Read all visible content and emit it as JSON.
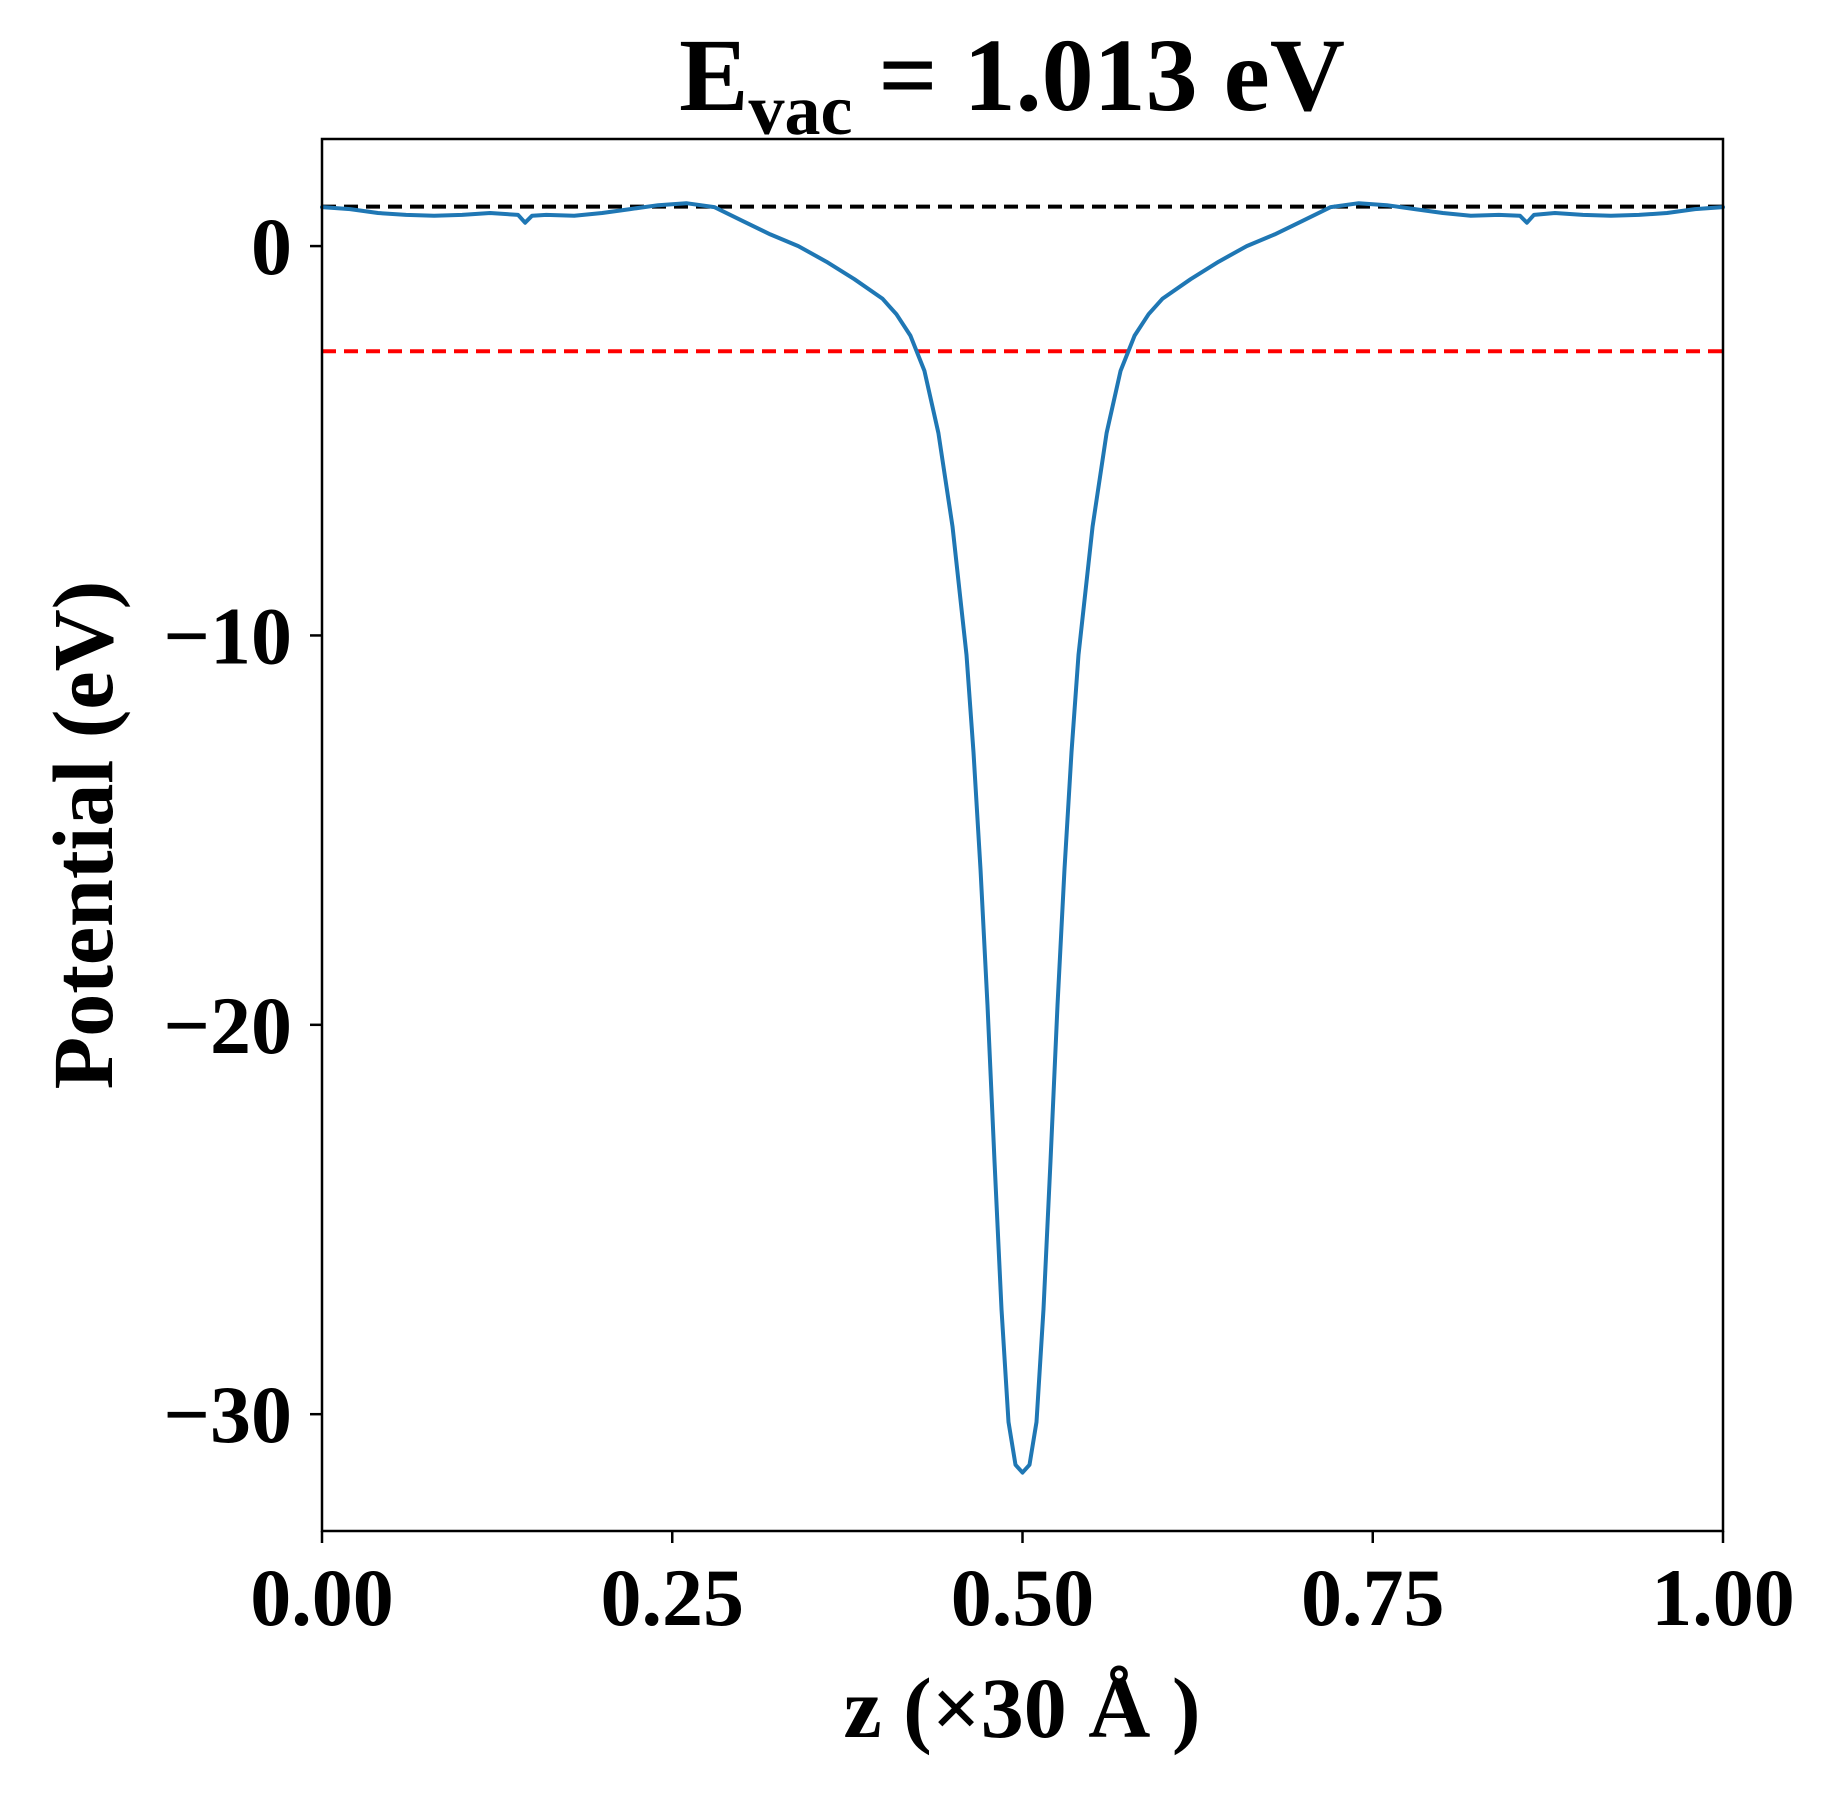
{
  "chart_data": {
    "type": "line",
    "title": {
      "main": "E",
      "subscript": "vac",
      "rest": " = 1.013 eV"
    },
    "xlabel": "z (×30 Å )",
    "ylabel": "Potential (eV)",
    "xlim": [
      0.0,
      1.0
    ],
    "ylim": [
      -33.0,
      2.75
    ],
    "x_ticks": [
      0.0,
      0.25,
      0.5,
      0.75,
      1.0
    ],
    "x_tick_labels": [
      "0.00",
      "0.25",
      "0.50",
      "0.75",
      "1.00"
    ],
    "y_ticks": [
      0,
      -10,
      -20,
      -30
    ],
    "y_tick_labels": [
      "0",
      "−10",
      "−20",
      "−30"
    ],
    "grid": false,
    "legend": null,
    "reference_lines": [
      {
        "label": "vacuum level",
        "y": 1.013,
        "color": "#000000",
        "style": "dashed"
      },
      {
        "label": "reference level",
        "y": -2.7,
        "color": "#ff0000",
        "style": "dashed"
      }
    ],
    "series": [
      {
        "color": "#1f77b4",
        "x": [
          0.0,
          0.02,
          0.04,
          0.06,
          0.08,
          0.1,
          0.12,
          0.14,
          0.145,
          0.15,
          0.16,
          0.18,
          0.2,
          0.22,
          0.24,
          0.26,
          0.28,
          0.3,
          0.32,
          0.34,
          0.36,
          0.38,
          0.4,
          0.41,
          0.42,
          0.43,
          0.44,
          0.45,
          0.46,
          0.465,
          0.47,
          0.475,
          0.48,
          0.485,
          0.49,
          0.495,
          0.5,
          0.505,
          0.51,
          0.515,
          0.52,
          0.525,
          0.53,
          0.535,
          0.54,
          0.55,
          0.56,
          0.57,
          0.58,
          0.59,
          0.6,
          0.62,
          0.64,
          0.66,
          0.68,
          0.7,
          0.72,
          0.74,
          0.76,
          0.78,
          0.8,
          0.82,
          0.84,
          0.855,
          0.86,
          0.865,
          0.88,
          0.9,
          0.92,
          0.94,
          0.96,
          0.98,
          1.0
        ],
        "y": [
          1.0,
          0.95,
          0.85,
          0.8,
          0.78,
          0.8,
          0.85,
          0.8,
          0.6,
          0.78,
          0.8,
          0.78,
          0.85,
          0.95,
          1.05,
          1.1,
          1.0,
          0.65,
          0.3,
          0.0,
          -0.4,
          -0.85,
          -1.35,
          -1.75,
          -2.3,
          -3.2,
          -4.8,
          -7.2,
          -10.5,
          -13.0,
          -16.0,
          -19.5,
          -23.5,
          -27.3,
          -30.2,
          -31.3,
          -31.5,
          -31.3,
          -30.2,
          -27.3,
          -23.5,
          -19.5,
          -16.0,
          -13.0,
          -10.5,
          -7.2,
          -4.8,
          -3.2,
          -2.3,
          -1.75,
          -1.35,
          -0.85,
          -0.4,
          0.0,
          0.3,
          0.65,
          1.0,
          1.1,
          1.05,
          0.95,
          0.85,
          0.78,
          0.8,
          0.78,
          0.6,
          0.8,
          0.85,
          0.8,
          0.78,
          0.8,
          0.85,
          0.95,
          1.0
        ]
      }
    ]
  }
}
